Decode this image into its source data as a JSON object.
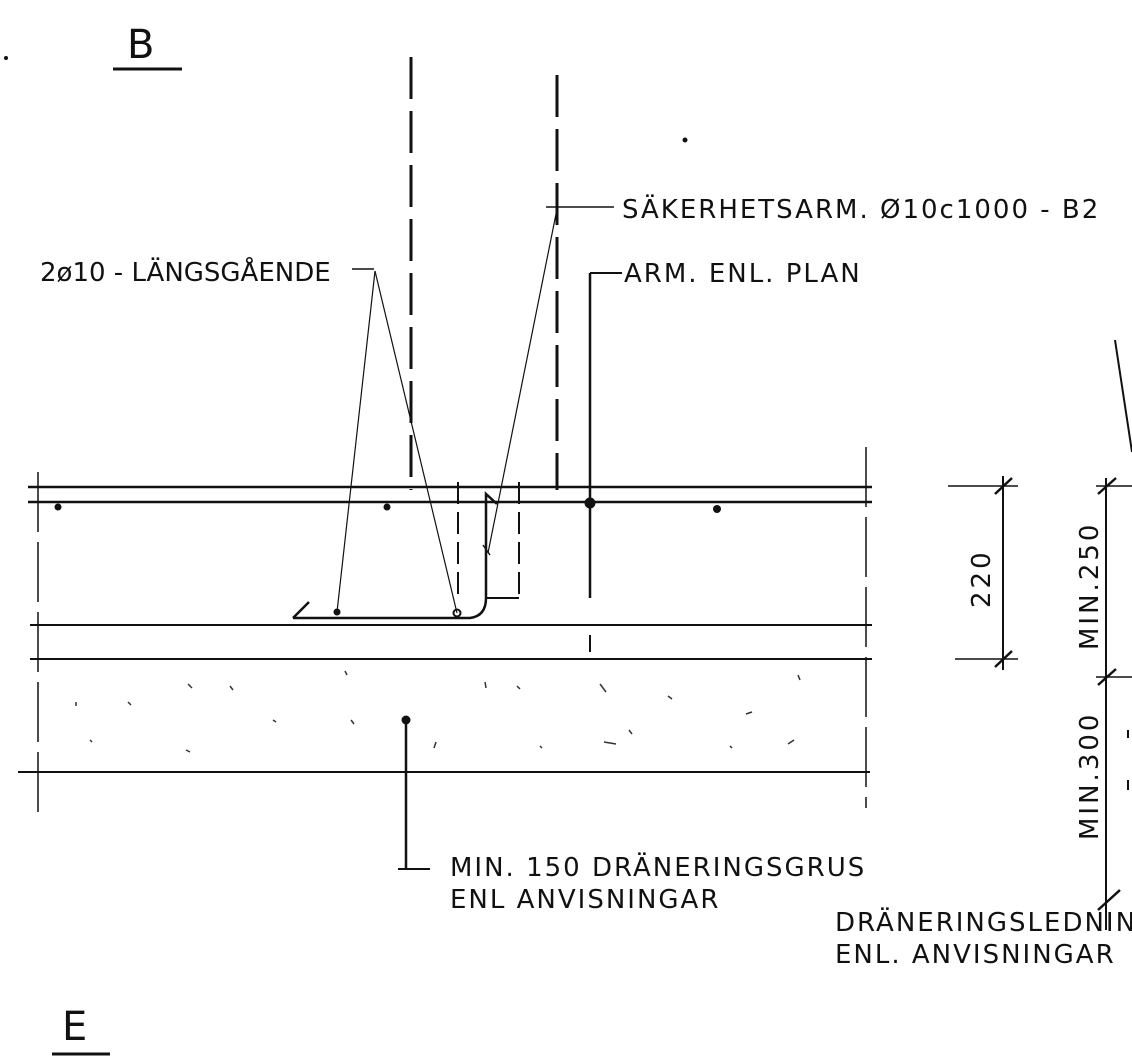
{
  "sections": {
    "top": "B",
    "bottom": "E"
  },
  "labels": {
    "longitudinal": "2ø10 - LÄNGSGÅENDE",
    "safety_rebar": "SÄKERHETSARM. Ø10c1000 - B2",
    "arm_plan": "ARM. ENL. PLAN",
    "gravel_line1": "MIN. 150 DRÄNERINGSGRUS",
    "gravel_line2": "ENL ANVISNINGAR",
    "drain_line1": "DRÄNERINGSLEDNIN",
    "drain_line2": "ENL. ANVISNINGAR"
  },
  "dimensions": {
    "slab": "220",
    "min_250": "MIN.250",
    "min_300": "MIN.300"
  },
  "colors": {
    "ink": "#111111",
    "paper": "#ffffff"
  }
}
